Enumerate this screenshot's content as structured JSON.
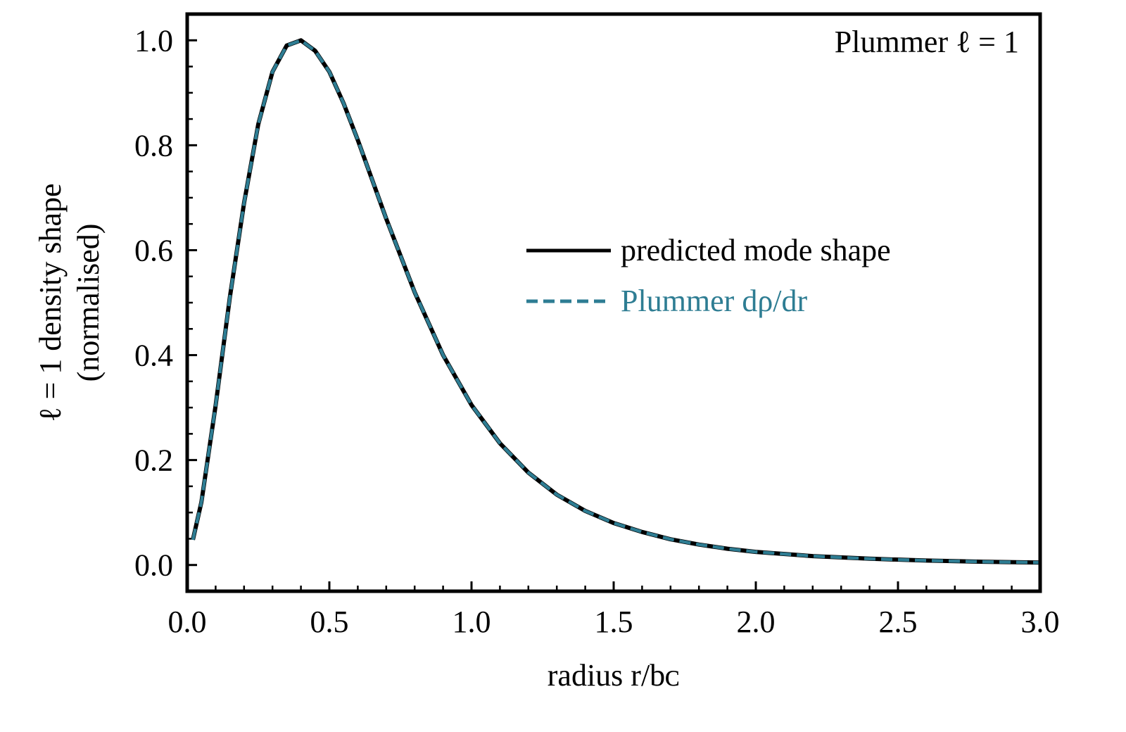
{
  "chart_data": {
    "type": "line",
    "annotation": "Plummer ℓ = 1",
    "xlabel": "radius r/bᴄ",
    "ylabel_line1": "ℓ = 1 density shape",
    "ylabel_line2": "(normalised)",
    "xlim": [
      0.0,
      3.0
    ],
    "ylim": [
      -0.05,
      1.05
    ],
    "x_ticks": [
      "0.0",
      "0.5",
      "1.0",
      "1.5",
      "2.0",
      "2.5",
      "3.0"
    ],
    "y_ticks": [
      "0.0",
      "0.2",
      "0.4",
      "0.6",
      "0.8",
      "1.0"
    ],
    "legend_position": "center-right",
    "grid": false,
    "colors": {
      "predicted": "#000000",
      "plummer": "#2e7d93"
    },
    "series": [
      {
        "name": "predicted mode shape",
        "style": "solid",
        "x": [
          0.02,
          0.05,
          0.1,
          0.15,
          0.2,
          0.25,
          0.3,
          0.35,
          0.4,
          0.45,
          0.5,
          0.55,
          0.6,
          0.7,
          0.8,
          0.9,
          1.0,
          1.1,
          1.2,
          1.3,
          1.4,
          1.5,
          1.6,
          1.7,
          1.8,
          1.9,
          2.0,
          2.2,
          2.4,
          2.6,
          2.8,
          3.0
        ],
        "y": [
          0.048,
          0.12,
          0.304,
          0.51,
          0.69,
          0.84,
          0.94,
          0.99,
          1.0,
          0.98,
          0.94,
          0.88,
          0.81,
          0.66,
          0.52,
          0.4,
          0.305,
          0.232,
          0.176,
          0.134,
          0.103,
          0.08,
          0.063,
          0.049,
          0.039,
          0.031,
          0.025,
          0.017,
          0.012,
          0.0085,
          0.0062,
          0.0046
        ]
      },
      {
        "name": "Plummer dρ/dr",
        "style": "dashed",
        "x": [
          0.02,
          0.05,
          0.1,
          0.15,
          0.2,
          0.25,
          0.3,
          0.35,
          0.4,
          0.45,
          0.5,
          0.55,
          0.6,
          0.7,
          0.8,
          0.9,
          1.0,
          1.1,
          1.2,
          1.3,
          1.4,
          1.5,
          1.6,
          1.7,
          1.8,
          1.9,
          2.0,
          2.2,
          2.4,
          2.6,
          2.8,
          3.0
        ],
        "y": [
          0.048,
          0.12,
          0.304,
          0.51,
          0.69,
          0.84,
          0.94,
          0.99,
          1.0,
          0.98,
          0.94,
          0.88,
          0.81,
          0.66,
          0.52,
          0.4,
          0.305,
          0.232,
          0.176,
          0.134,
          0.103,
          0.08,
          0.063,
          0.049,
          0.039,
          0.031,
          0.025,
          0.017,
          0.012,
          0.0085,
          0.0062,
          0.0046
        ]
      }
    ]
  }
}
